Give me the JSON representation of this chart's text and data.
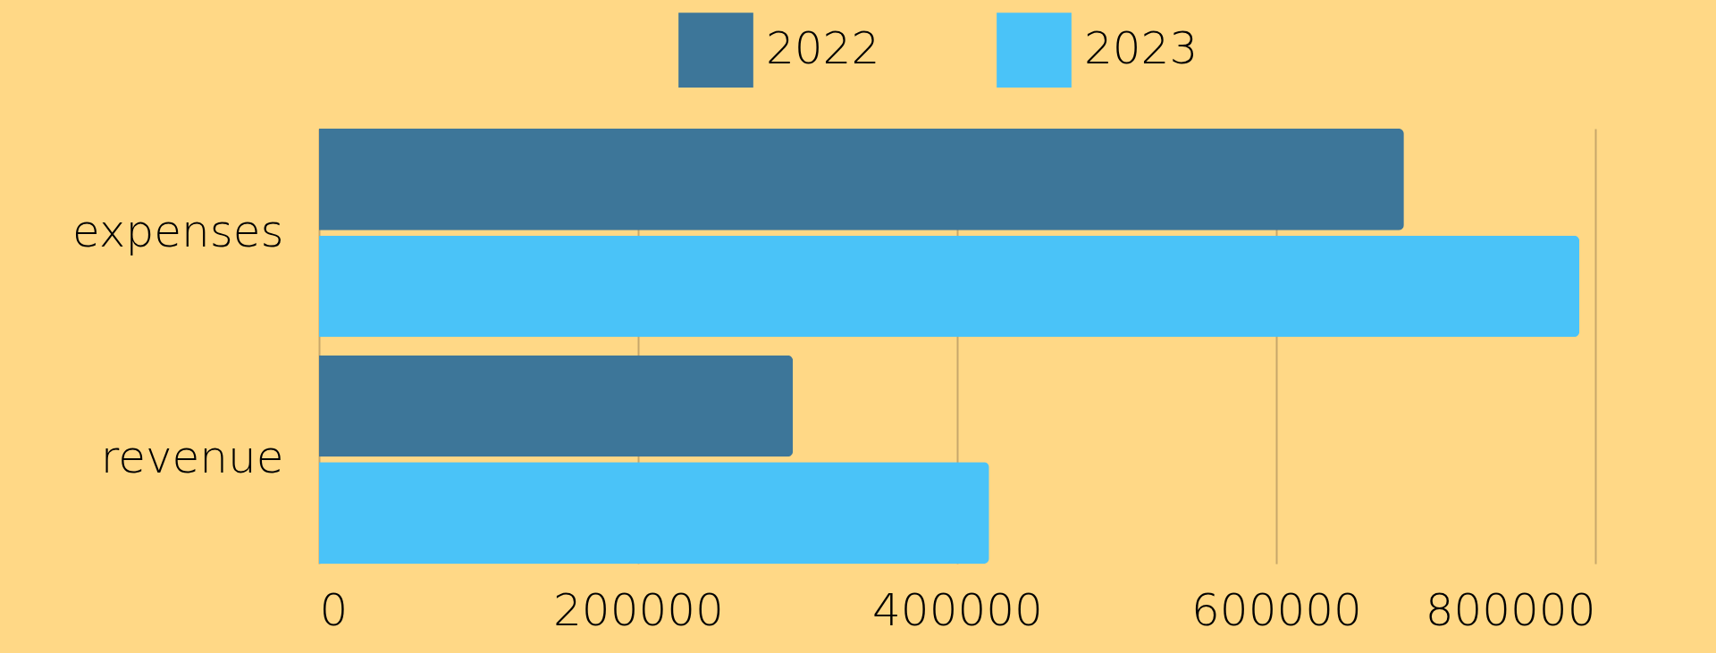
{
  "chart_data": {
    "type": "bar",
    "orientation": "horizontal",
    "categories": [
      "expenses",
      "revenue"
    ],
    "series": [
      {
        "name": "2022",
        "color": "#3d7699",
        "values": [
          680000,
          297000
        ]
      },
      {
        "name": "2023",
        "color": "#4ac3f8",
        "values": [
          790000,
          420000
        ]
      }
    ],
    "xlim": [
      0,
      800000
    ],
    "xticks": [
      0,
      200000,
      400000,
      600000,
      800000
    ],
    "grid": "x",
    "legend": "top"
  }
}
